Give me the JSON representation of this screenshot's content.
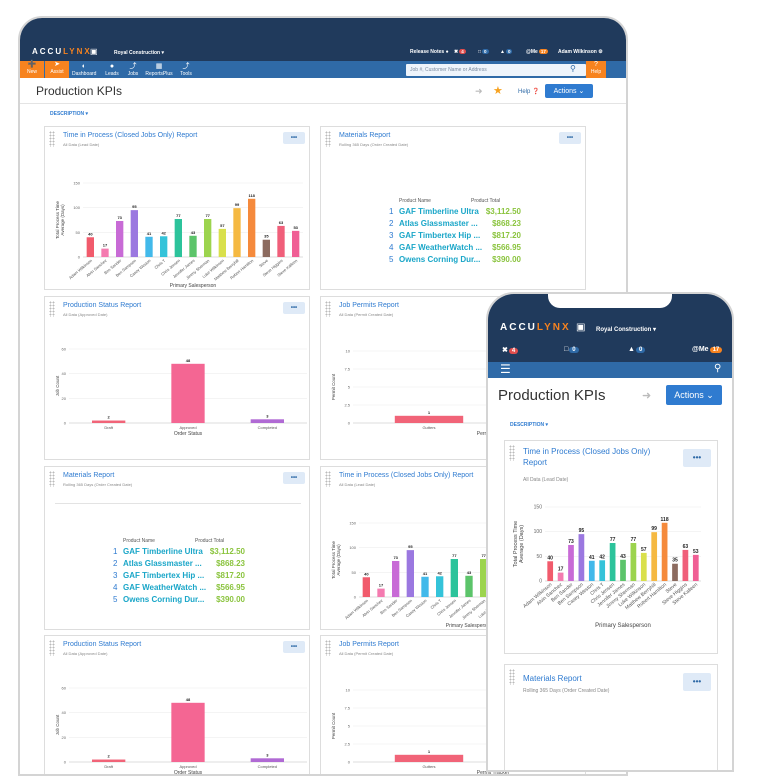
{
  "app": {
    "logo_a": "ACCU",
    "logo_b": "LYNX",
    "company": "Royal Construction ▾"
  },
  "topbar": {
    "release_notes": "Release Notes",
    "pin_count": "4",
    "box_count": "0",
    "bell_count": "0",
    "me_label": "@Me",
    "me_count": "17",
    "user": "Adam Wilkinson"
  },
  "nav": {
    "new": "New",
    "assist": "Assist",
    "items": [
      "Dashboard",
      "Leads",
      "Jobs",
      "ReportsPlus",
      "Tools"
    ],
    "search_placeholder": "Job #, Customer Name or Address",
    "help": "Help"
  },
  "page": {
    "title": "Production KPIs",
    "help": "Help",
    "actions": "Actions",
    "description": "DESCRIPTION"
  },
  "widgets": {
    "time_title": "Time in Process (Closed Jobs Only) Report",
    "time_title_a": "Time in Process (Closed Jobs Only)",
    "time_title_b": "Report",
    "time_sub": "All Data (Lead Date)",
    "materials_title": "Materials Report",
    "materials_sub": "Rolling 365 Days (Order Created Date)",
    "status_title": "Production Status Report",
    "status_sub": "All Data (Approved Date)",
    "permits_title": "Job Permits Report",
    "permits_sub": "All Data (Permit Created Date)",
    "more": "•••"
  },
  "materials": {
    "header_name": "Product Name",
    "header_total": "Product Total",
    "rows": [
      {
        "n": "1",
        "name": "GAF Timberline Ultra",
        "total": "$3,112.50"
      },
      {
        "n": "2",
        "name": "Atlas Glassmaster ...",
        "total": "$868.23"
      },
      {
        "n": "3",
        "name": "GAF Timbertex Hip ...",
        "total": "$817.20"
      },
      {
        "n": "4",
        "name": "GAF WeatherWatch ...",
        "total": "$566.95"
      },
      {
        "n": "5",
        "name": "Owens Corning Dur...",
        "total": "$390.00"
      }
    ]
  },
  "chart_data": [
    {
      "type": "bar",
      "title": "Time in Process (Closed Jobs Only) Report",
      "xlabel": "Primary Salesperson",
      "ylabel": "Total Process Time Average (Days)",
      "ylim": [
        0,
        150
      ],
      "yticks": [
        "0",
        "50",
        "100",
        "150"
      ],
      "categories": [
        "Adam Wilkinson",
        "Alvin Sanchez",
        "Ben Sander",
        "Ben Sampson",
        "Casey Weston",
        "Chris T",
        "Chris Jensen",
        "Jennifer James",
        "Jimmy Sherman",
        "Luke Wilkinson",
        "Matthew Berryhill",
        "Robert Hamilton",
        "Steve",
        "Steve Higgins",
        "Steve Kalleen"
      ],
      "values": [
        40,
        17,
        73,
        95,
        41,
        42,
        77,
        43,
        77,
        57,
        99,
        118,
        35,
        63,
        53
      ],
      "labels": [
        "40",
        "17",
        "73",
        "95",
        "41",
        "42",
        "77",
        "43",
        "77",
        "57",
        "99",
        "118",
        "35",
        "63",
        "53"
      ],
      "colors": [
        "#f15b6c",
        "#f47bb0",
        "#c86bd6",
        "#9b78e0",
        "#42b9ea",
        "#34c3d9",
        "#2cc39b",
        "#5cc46a",
        "#9cd44e",
        "#d9e04c",
        "#f5b942",
        "#f58a3c",
        "#8c6b5f",
        "#f05f7a",
        "#f05f95"
      ]
    },
    {
      "type": "bar",
      "title": "Production Status Report",
      "xlabel": "Order Status",
      "ylabel": "Job Count",
      "ylim": [
        0,
        60
      ],
      "yticks": [
        "0",
        "20",
        "40",
        "60"
      ],
      "categories": [
        "Draft",
        "Approved",
        "Completed"
      ],
      "values": [
        2,
        48,
        3
      ],
      "labels": [
        "2",
        "48",
        "3"
      ],
      "colors": [
        "#f16478",
        "#f46693",
        "#b06ad4"
      ]
    },
    {
      "type": "bar",
      "title": "Job Permits Report",
      "xlabel": "Permit Tracker",
      "ylabel": "Permit Count",
      "ylim": [
        0,
        10
      ],
      "yticks": [
        "0",
        "2.5",
        "5",
        "7.5",
        "10"
      ],
      "categories": [
        "Gutters"
      ],
      "values": [
        1
      ],
      "labels": [
        "1"
      ],
      "colors": [
        "#f16478"
      ]
    }
  ]
}
